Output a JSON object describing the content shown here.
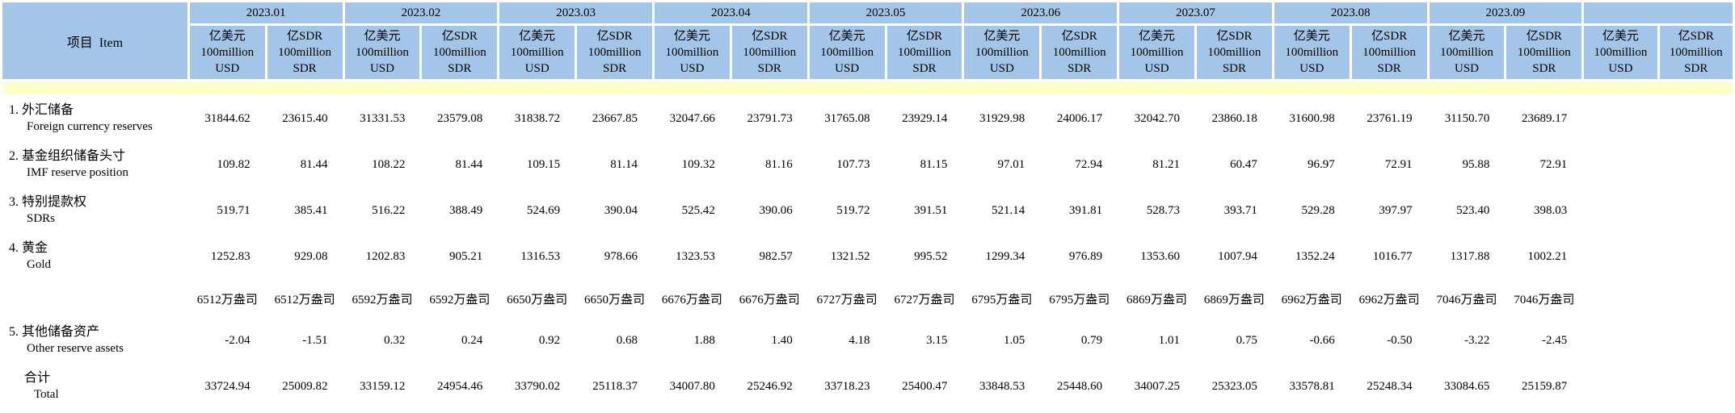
{
  "colors": {
    "header_blue": "#a3c5e8",
    "separator_yellow": "#ffffcc"
  },
  "table": {
    "item_header": "项目  Item",
    "months": [
      "2023.01",
      "2023.02",
      "2023.03",
      "2023.04",
      "2023.05",
      "2023.06",
      "2023.07",
      "2023.08",
      "2023.09",
      ""
    ],
    "unit_usd_lines": [
      "亿美元",
      "100million",
      "USD"
    ],
    "unit_sdr_lines": [
      "亿SDR",
      "100million",
      "SDR"
    ],
    "rows": [
      {
        "key": "foreign-currency-reserves",
        "label_zh": "1. 外汇储备",
        "label_en": "Foreign currency reserves",
        "values": [
          "31844.62",
          "23615.40",
          "31331.53",
          "23579.08",
          "31838.72",
          "23667.85",
          "32047.66",
          "23791.73",
          "31765.08",
          "23929.14",
          "31929.98",
          "24006.17",
          "32042.70",
          "23860.18",
          "31600.98",
          "23761.19",
          "31150.70",
          "23689.17"
        ]
      },
      {
        "key": "imf-reserve-position",
        "label_zh": "2. 基金组织储备头寸",
        "label_en": "IMF reserve position",
        "values": [
          "109.82",
          "81.44",
          "108.22",
          "81.44",
          "109.15",
          "81.14",
          "109.32",
          "81.16",
          "107.73",
          "81.15",
          "97.01",
          "72.94",
          "81.21",
          "60.47",
          "96.97",
          "72.91",
          "95.88",
          "72.91"
        ]
      },
      {
        "key": "sdrs",
        "label_zh": "3. 特别提款权",
        "label_en": "SDRs",
        "values": [
          "519.71",
          "385.41",
          "516.22",
          "388.49",
          "524.69",
          "390.04",
          "525.42",
          "390.06",
          "519.72",
          "391.51",
          "521.14",
          "391.81",
          "528.73",
          "393.71",
          "529.28",
          "397.97",
          "523.40",
          "398.03"
        ]
      },
      {
        "key": "gold",
        "label_zh": "4. 黄金",
        "label_en": "Gold",
        "values": [
          "1252.83",
          "929.08",
          "1202.83",
          "905.21",
          "1316.53",
          "978.66",
          "1323.53",
          "982.57",
          "1321.52",
          "995.52",
          "1299.34",
          "976.89",
          "1353.60",
          "1007.94",
          "1352.24",
          "1016.77",
          "1317.88",
          "1002.21"
        ]
      },
      {
        "key": "gold-ounces",
        "label_zh": "",
        "label_en": "",
        "values": [
          "6512万盎司",
          "6512万盎司",
          "6592万盎司",
          "6592万盎司",
          "6650万盎司",
          "6650万盎司",
          "6676万盎司",
          "6676万盎司",
          "6727万盎司",
          "6727万盎司",
          "6795万盎司",
          "6795万盎司",
          "6869万盎司",
          "6869万盎司",
          "6962万盎司",
          "6962万盎司",
          "7046万盎司",
          "7046万盎司"
        ]
      },
      {
        "key": "other-reserve-assets",
        "label_zh": "5. 其他储备资产",
        "label_en": "Other reserve assets",
        "values": [
          "-2.04",
          "-1.51",
          "0.32",
          "0.24",
          "0.92",
          "0.68",
          "1.88",
          "1.40",
          "4.18",
          "3.15",
          "1.05",
          "0.79",
          "1.01",
          "0.75",
          "-0.66",
          "-0.50",
          "-3.22",
          "-2.45"
        ]
      },
      {
        "key": "total",
        "label_zh": "合计",
        "label_en": "Total",
        "values": [
          "33724.94",
          "25009.82",
          "33159.12",
          "24954.46",
          "33790.02",
          "25118.37",
          "34007.80",
          "25246.92",
          "33718.23",
          "25400.47",
          "33848.53",
          "25448.60",
          "34007.25",
          "25323.05",
          "33578.81",
          "25248.34",
          "33084.65",
          "25159.87"
        ]
      }
    ]
  }
}
